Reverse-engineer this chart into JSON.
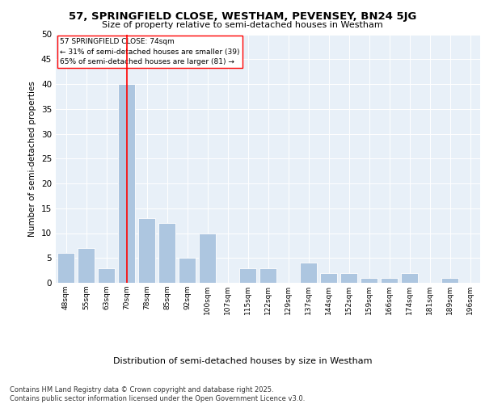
{
  "title1": "57, SPRINGFIELD CLOSE, WESTHAM, PEVENSEY, BN24 5JG",
  "title2": "Size of property relative to semi-detached houses in Westham",
  "xlabel": "Distribution of semi-detached houses by size in Westham",
  "ylabel": "Number of semi-detached properties",
  "categories": [
    "48sqm",
    "55sqm",
    "63sqm",
    "70sqm",
    "78sqm",
    "85sqm",
    "92sqm",
    "100sqm",
    "107sqm",
    "115sqm",
    "122sqm",
    "129sqm",
    "137sqm",
    "144sqm",
    "152sqm",
    "159sqm",
    "166sqm",
    "174sqm",
    "181sqm",
    "189sqm",
    "196sqm"
  ],
  "values": [
    6,
    7,
    3,
    40,
    13,
    12,
    5,
    10,
    0,
    3,
    3,
    0,
    4,
    2,
    2,
    1,
    1,
    2,
    0,
    1,
    0
  ],
  "bar_color": "#adc6e0",
  "highlight_index": 3,
  "annotation_text1": "57 SPRINGFIELD CLOSE: 74sqm",
  "annotation_text2": "← 31% of semi-detached houses are smaller (39)",
  "annotation_text3": "65% of semi-detached houses are larger (81) →",
  "ylim": [
    0,
    50
  ],
  "yticks": [
    0,
    5,
    10,
    15,
    20,
    25,
    30,
    35,
    40,
    45,
    50
  ],
  "plot_bg_color": "#e8f0f8",
  "footer": "Contains HM Land Registry data © Crown copyright and database right 2025.\nContains public sector information licensed under the Open Government Licence v3.0."
}
